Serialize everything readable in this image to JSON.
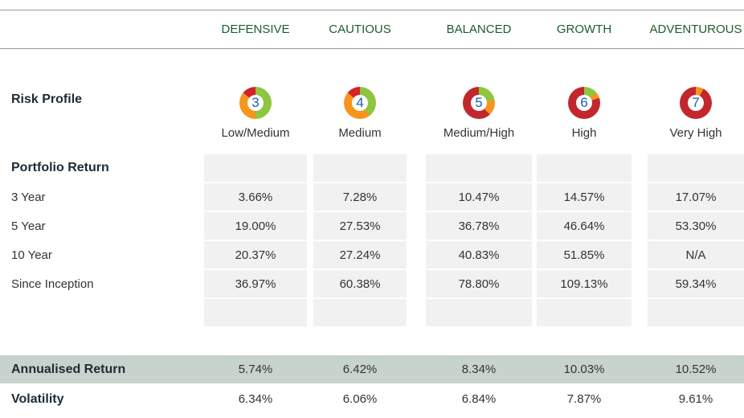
{
  "columns": [
    "DEFENSIVE",
    "CAUTIOUS",
    "BALANCED",
    "GROWTH",
    "ADVENTUROUS"
  ],
  "risk_profile": {
    "label": "Risk Profile",
    "levels": [
      "3",
      "4",
      "5",
      "6",
      "7"
    ],
    "descriptions": [
      "Low/Medium",
      "Medium",
      "Medium/High",
      "High",
      "Very High"
    ]
  },
  "portfolio_return": {
    "label": "Portfolio Return",
    "rows": [
      {
        "label": "3 Year",
        "values": [
          "3.66%",
          "7.28%",
          "10.47%",
          "14.57%",
          "17.07%"
        ]
      },
      {
        "label": "5 Year",
        "values": [
          "19.00%",
          "27.53%",
          "36.78%",
          "46.64%",
          "53.30%"
        ]
      },
      {
        "label": "10 Year",
        "values": [
          "20.37%",
          "27.24%",
          "40.83%",
          "51.85%",
          "N/A"
        ]
      },
      {
        "label": "Since Inception",
        "values": [
          "36.97%",
          "60.38%",
          "78.80%",
          "109.13%",
          "59.34%"
        ]
      }
    ]
  },
  "summary_rows": [
    {
      "label": "Annualised Return",
      "values": [
        "5.74%",
        "6.42%",
        "8.34%",
        "10.03%",
        "10.52%"
      ]
    },
    {
      "label": "Volatility",
      "values": [
        "6.34%",
        "6.06%",
        "6.84%",
        "7.87%",
        "9.61%"
      ]
    }
  ]
}
